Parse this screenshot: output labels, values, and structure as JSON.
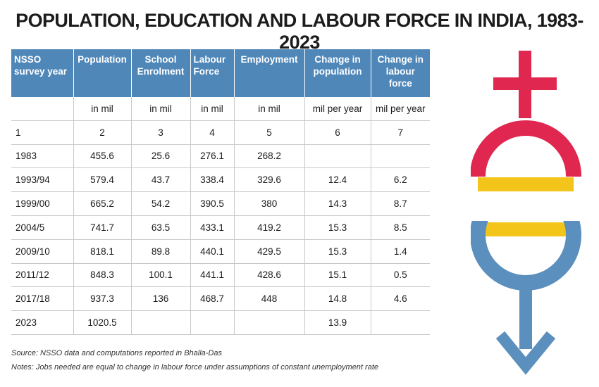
{
  "title": "POPULATION, EDUCATION AND LABOUR FORCE IN INDIA, 1983-2023",
  "columns": [
    {
      "label": "NSSO survey year"
    },
    {
      "label": "Population"
    },
    {
      "label": "School Enrolment"
    },
    {
      "label": "Labour Force"
    },
    {
      "label": "Employment"
    },
    {
      "label": "Change in population"
    },
    {
      "label": "Change in labour force"
    }
  ],
  "units": [
    "",
    "in mil",
    "in mil",
    "in mil",
    "in mil",
    "mil per year",
    "mil per year"
  ],
  "column_numbers": [
    "1",
    "2",
    "3",
    "4",
    "5",
    "6",
    "7"
  ],
  "rows": [
    [
      "1983",
      "455.6",
      "25.6",
      "276.1",
      "268.2",
      "",
      ""
    ],
    [
      "1993/94",
      "579.4",
      "43.7",
      "338.4",
      "329.6",
      "12.4",
      "6.2"
    ],
    [
      "1999/00",
      "665.2",
      "54.2",
      "390.5",
      "380",
      "14.3",
      "8.7"
    ],
    [
      "2004/5",
      "741.7",
      "63.5",
      "433.1",
      "419.2",
      "15.3",
      "8.5"
    ],
    [
      "2009/10",
      "818.1",
      "89.8",
      "440.1",
      "429.5",
      "15.3",
      "1.4"
    ],
    [
      "2011/12",
      "848.3",
      "100.1",
      "441.1",
      "428.6",
      "15.1",
      "0.5"
    ],
    [
      "2017/18",
      "937.3",
      "136",
      "468.7",
      "448",
      "14.8",
      "4.6"
    ],
    [
      "2023",
      "1020.5",
      "",
      "",
      "",
      "13.9",
      ""
    ]
  ],
  "source": "Source: NSSO data and computations reported in Bhalla-Das",
  "notes": "Notes: Jobs needed are equal to change in labour force under assumptions of constant unemployment rate",
  "colors": {
    "header_bg": "#4f87b9",
    "female_symbol": "#e0274f",
    "middle_band": "#f3c51b",
    "male_symbol": "#5b8fbd"
  },
  "icons": [
    "female-symbol-icon",
    "male-symbol-icon"
  ]
}
